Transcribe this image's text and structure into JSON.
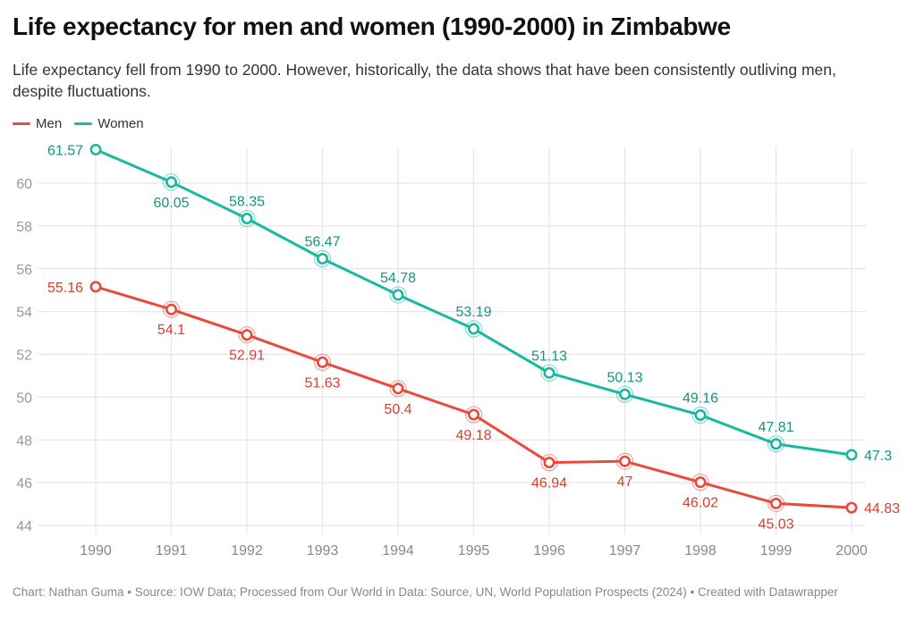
{
  "title": "Life expectancy for men and women (1990-2000) in Zimbabwe",
  "subtitle": "Life expectancy fell from 1990 to 2000. However, historically, the data shows that have been consistently outliving men, despite fluctuations.",
  "footer": "Chart: Nathan Guma  • Source: IOW Data; Processed from Our World in Data: Source, UN, World Population Prospects (2024) • Created with Datawrapper",
  "chart_data": {
    "type": "line",
    "title": "Life expectancy for men and women (1990-2000) in Zimbabwe",
    "xlabel": "",
    "ylabel": "",
    "x": [
      1990,
      1991,
      1992,
      1993,
      1994,
      1995,
      1996,
      1997,
      1998,
      1999,
      2000
    ],
    "ylim": [
      44,
      61.57
    ],
    "yticks": [
      44,
      46,
      48,
      50,
      52,
      54,
      56,
      58,
      60
    ],
    "grid": true,
    "legend_position": "top-left",
    "series": [
      {
        "name": "Men",
        "color": "#e84a3b",
        "label_color": "#d93d2e",
        "values": [
          55.16,
          54.1,
          52.91,
          51.63,
          50.4,
          49.18,
          46.94,
          47,
          46.02,
          45.03,
          44.83
        ],
        "labels": [
          "55.16",
          "54.1",
          "52.91",
          "51.63",
          "50.4",
          "49.18",
          "46.94",
          "47",
          "46.02",
          "45.03",
          "44.83"
        ]
      },
      {
        "name": "Women",
        "color": "#18b9a0",
        "label_color": "#12967f",
        "values": [
          61.57,
          60.05,
          58.35,
          56.47,
          54.78,
          53.19,
          51.13,
          50.13,
          49.16,
          47.81,
          47.3
        ],
        "labels": [
          "61.57",
          "60.05",
          "58.35",
          "56.47",
          "54.78",
          "53.19",
          "51.13",
          "50.13",
          "49.16",
          "47.81",
          "47.3"
        ]
      }
    ]
  }
}
